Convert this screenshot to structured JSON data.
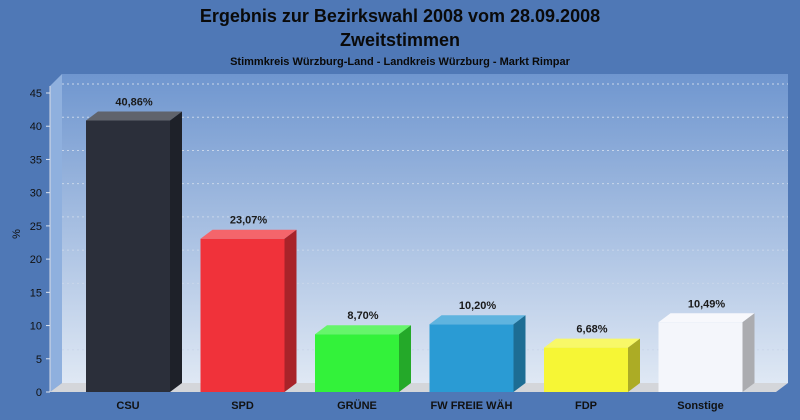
{
  "chart_data": {
    "type": "bar",
    "title": "Ergebnis zur Bezirkswahl 2008 vom 28.09.2008",
    "title2": "Zweitstimmen",
    "subtitle": "Stimmkreis Würzburg-Land - Landkreis Würzburg - Markt Rimpar",
    "xlabel": "",
    "ylabel": "%",
    "ylim": [
      0,
      45
    ],
    "yticks": [
      "0",
      "5",
      "10",
      "15",
      "20",
      "25",
      "30",
      "35",
      "40",
      "45"
    ],
    "grid": true,
    "categories": [
      "CSU",
      "SPD",
      "GRÜNE",
      "FW FREIE WÄH",
      "FDP",
      "Sonstige"
    ],
    "values": [
      40.86,
      23.07,
      8.7,
      10.2,
      6.68,
      10.49
    ],
    "value_labels": [
      "40,86%",
      "23,07%",
      "8,70%",
      "10,20%",
      "6,68%",
      "10,49%"
    ],
    "colors": [
      "#2b2f3a",
      "#f0323a",
      "#33f23a",
      "#2a9bd4",
      "#f6f635",
      "#f4f6fb"
    ]
  }
}
